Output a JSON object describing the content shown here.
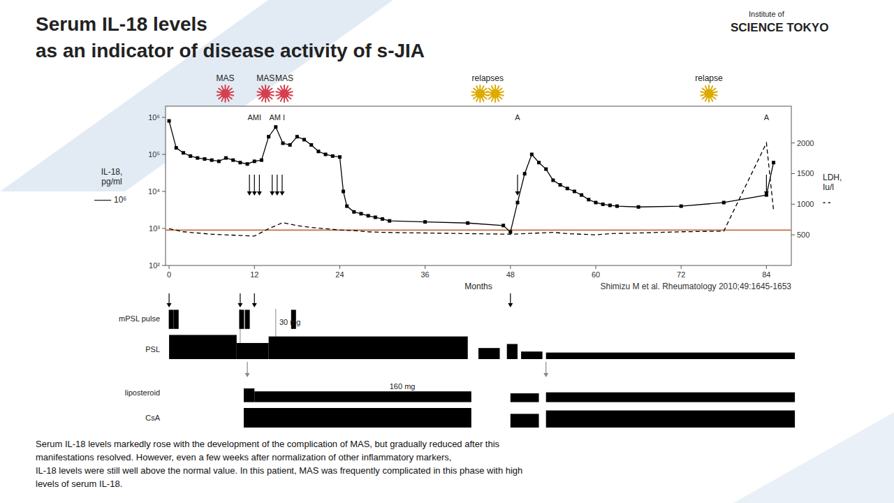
{
  "logo": [
    "Institute of",
    "SCIENCE TOKYO"
  ],
  "citation": "Shimizu M et al. Rheumatology 2010;49:1645-1653",
  "body_text": "Serum IL-18 levels markedly rose with the development of the complication of MAS, but gradually reduced after this\nmanifestations resolved. However, even a few weeks after normalization of other inflammatory markers,\nIL-18 levels were still well above the normal value. In this patient, MAS was frequently complicated in this phase with high\nlevels of serum IL-18.",
  "chart_data": [
    {
      "type": "line",
      "title": "Serum IL-18 levels",
      "subtitle": "as an indicator of disease activity of s-JIA",
      "x_label": "Months",
      "y_label": "IL-18,\npg/ml",
      "y2_label": "LDH,\nIu/l",
      "log": "y",
      "grid": false,
      "xlim": [
        -0.5,
        87.5
      ],
      "xticks": [
        0,
        12,
        24,
        36,
        48,
        60,
        72,
        84
      ],
      "ylim": [
        100,
        2000000
      ],
      "yticks": [
        {
          "value": 100,
          "label": "10²"
        },
        {
          "value": 1000,
          "label": "10³"
        },
        {
          "value": 10000,
          "label": "10⁴"
        },
        {
          "value": 100000,
          "label": "10⁵"
        },
        {
          "value": 1000000,
          "label": "10⁶"
        }
      ],
      "y2lim": [
        0,
        2600
      ],
      "y2ticks": [
        500,
        1000,
        1500,
        2000
      ],
      "series": [
        {
          "x": [
            0,
            1,
            2,
            3,
            4,
            5,
            6,
            7,
            8,
            9,
            10,
            11,
            12,
            13,
            14,
            15,
            16,
            17,
            18,
            19,
            20,
            21,
            22,
            23,
            24,
            24.5,
            25,
            26,
            27,
            28,
            29,
            30,
            31,
            36,
            42,
            47,
            48,
            49,
            50,
            51,
            52,
            53,
            54,
            55,
            56,
            57,
            58,
            59,
            60,
            61,
            62,
            63,
            66,
            72,
            78,
            84,
            85
          ],
          "values": [
            800000,
            150000,
            110000,
            90000,
            80000,
            75000,
            70000,
            65000,
            80000,
            70000,
            60000,
            55000,
            65000,
            70000,
            300000,
            550000,
            200000,
            180000,
            300000,
            250000,
            180000,
            120000,
            100000,
            90000,
            85000,
            10000,
            4000,
            2800,
            2500,
            2200,
            2000,
            1800,
            1600,
            1500,
            1400,
            1200,
            800,
            5000,
            30000,
            100000,
            60000,
            40000,
            20000,
            15000,
            12000,
            10000,
            8000,
            6000,
            5000,
            4500,
            4200,
            4000,
            3800,
            4000,
            5000,
            8000,
            60000
          ],
          "color": "#000000",
          "line_style": "solid",
          "marker": "square"
        },
        {
          "axis": "y2",
          "x": [
            0,
            2,
            4,
            6,
            8,
            10,
            12,
            14,
            16,
            18,
            20,
            22,
            24,
            26,
            28,
            30,
            36,
            42,
            48,
            50,
            52,
            54,
            56,
            58,
            60,
            62,
            66,
            72,
            78,
            84,
            85
          ],
          "values": [
            600,
            550,
            530,
            510,
            500,
            490,
            480,
            600,
            700,
            650,
            620,
            600,
            580,
            570,
            550,
            540,
            530,
            520,
            510,
            520,
            530,
            540,
            520,
            510,
            500,
            520,
            530,
            550,
            560,
            2000,
            900
          ],
          "color": "#000000",
          "line_style": "dashed",
          "marker": "none"
        }
      ],
      "reference_lines": [
        {
          "y": 900,
          "color": "#c8703a"
        }
      ],
      "annotations": [
        {
          "text": "——"
        },
        {
          "text": "10⁶"
        },
        {
          "text": "- -"
        }
      ],
      "events": [
        {
          "label": "MAS",
          "color": "#d44050"
        },
        {
          "label": "MAS",
          "color": "#d44050"
        },
        {
          "label": "MAS",
          "color": "#d44050"
        },
        {
          "label": "relapses",
          "color": "#ddaa00"
        },
        {
          "label": null,
          "color": "#ddaa00"
        },
        {
          "label": "relapse",
          "color": "#ddaa00"
        }
      ],
      "arrows": [
        {
          "label": "AMI",
          "x": [
            11.3,
            12.0,
            12.7
          ]
        },
        {
          "label": "AM I",
          "x": [
            14.5,
            15.2,
            15.9
          ]
        },
        {
          "label": "A",
          "x": [
            49
          ]
        },
        {
          "label": "A",
          "x": [
            84
          ]
        }
      ]
    },
    {
      "type": "timeline",
      "tick_labels": false,
      "xlim": [
        -0.5,
        88.5
      ],
      "ylim": [
        0,
        1
      ],
      "series": [
        {
          "name": "mPSL pulse",
          "x": [
            0.3,
            1.0,
            10.2,
            11.0,
            17.5
          ],
          "values": [
            0.38,
            0.38,
            0.38,
            0.38,
            0.38
          ],
          "color": "#000000"
        },
        {
          "name": "PSL",
          "start": [
            0,
            9.5,
            14,
            43.5,
            47.5,
            49.5,
            53
          ],
          "end": [
            9.5,
            14,
            42,
            46.5,
            49,
            52.5,
            88
          ],
          "values": [
            0.48,
            0.32,
            0.45,
            0.22,
            0.3,
            0.15,
            0.13
          ],
          "color": "#000000"
        }
      ],
      "reference_lines": [
        {
          "x": 10,
          "color": "#888888"
        },
        {
          "x": 15,
          "color": "#888888"
        }
      ],
      "annotations": [
        {
          "text": "30 mg",
          "x": 15.5,
          "y": 0.68
        }
      ],
      "arrows": [
        {
          "x": [
            0,
            10,
            12,
            48
          ],
          "color": "#000000"
        }
      ]
    },
    {
      "type": "timeline",
      "tick_labels": false,
      "xlim": [
        -0.5,
        88.5
      ],
      "ylim": [
        0,
        1
      ],
      "series": [
        {
          "name": "liposteroid",
          "start": [
            10.5,
            12,
            48,
            53
          ],
          "end": [
            12,
            42.5,
            52,
            88
          ],
          "values": [
            0.28,
            0.22,
            0.18,
            0.2
          ],
          "color": "#000000"
        },
        {
          "name": "CsA",
          "start": [
            10.5,
            48,
            53
          ],
          "end": [
            42.5,
            52,
            88
          ],
          "values": [
            0.4,
            0.28,
            0.35
          ],
          "color": "#000000"
        }
      ],
      "annotations": [
        {
          "text": "160 mg",
          "x": 31,
          "y": 0.78
        }
      ],
      "arrows": [
        {
          "x": [
            11,
            53
          ],
          "color": "#888888"
        }
      ]
    }
  ]
}
